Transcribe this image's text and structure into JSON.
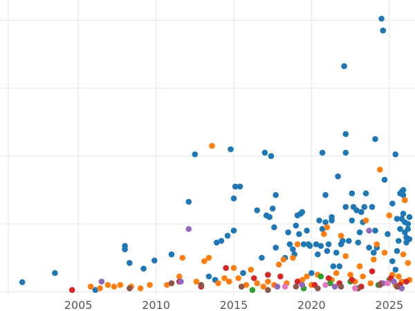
{
  "chart_data": {
    "type": "scatter",
    "title": "",
    "xlabel": "",
    "ylabel": "",
    "xlim": [
      2000.5,
      2026.3
    ],
    "ylim": [
      -1,
      86
    ],
    "x_ticks": [
      2005,
      2010,
      2015,
      2020,
      2025
    ],
    "x_tick_labels": [
      "2005",
      "2010",
      "2015",
      "2020",
      "2025"
    ],
    "y_grid_values": [
      0,
      20,
      40,
      60,
      80
    ],
    "grid": true,
    "legend": "none",
    "series": [
      {
        "color": "#1f77b4",
        "points": [
          [
            2001.4,
            2.8
          ],
          [
            2003.5,
            5.5
          ],
          [
            2006.1,
            0.5
          ],
          [
            2008.0,
            13.5
          ],
          [
            2008.0,
            12.5
          ],
          [
            2008.3,
            8.5
          ],
          [
            2009.2,
            6.8
          ],
          [
            2009.9,
            9.2
          ],
          [
            2011.0,
            11.0
          ],
          [
            2012.1,
            26.5
          ],
          [
            2012.5,
            40.5
          ],
          [
            2013.4,
            4.5
          ],
          [
            2013.8,
            3.5
          ],
          [
            2013.9,
            14.5
          ],
          [
            2014.2,
            15.0
          ],
          [
            2014.6,
            16.5
          ],
          [
            2014.8,
            42.0
          ],
          [
            2015.0,
            18.0
          ],
          [
            2015.0,
            27.5
          ],
          [
            2015.1,
            31.0
          ],
          [
            2015.4,
            31.0
          ],
          [
            2015.6,
            5.5
          ],
          [
            2016.5,
            24.0
          ],
          [
            2016.8,
            10.0
          ],
          [
            2017.0,
            41.0
          ],
          [
            2017.1,
            22.5
          ],
          [
            2017.3,
            22.0
          ],
          [
            2017.4,
            40.0
          ],
          [
            2017.5,
            24.5
          ],
          [
            2017.6,
            19.0
          ],
          [
            2017.7,
            28.5
          ],
          [
            2017.7,
            13.0
          ],
          [
            2018.3,
            10.0
          ],
          [
            2018.5,
            17.5
          ],
          [
            2018.6,
            14.0
          ],
          [
            2018.8,
            12.5
          ],
          [
            2018.9,
            11.0
          ],
          [
            2019.0,
            19.5
          ],
          [
            2019.1,
            22.5
          ],
          [
            2019.2,
            17.0
          ],
          [
            2019.3,
            23.0
          ],
          [
            2019.4,
            23.5
          ],
          [
            2019.5,
            14.0
          ],
          [
            2019.7,
            18.0
          ],
          [
            2019.8,
            14.0
          ],
          [
            2019.9,
            13.5
          ],
          [
            2020.0,
            5.5
          ],
          [
            2020.3,
            14.0
          ],
          [
            2020.4,
            11.0
          ],
          [
            2020.5,
            21.0
          ],
          [
            2020.6,
            13.5
          ],
          [
            2020.7,
            18.5
          ],
          [
            2020.7,
            41.0
          ],
          [
            2020.9,
            20.5
          ],
          [
            2020.9,
            28.5
          ],
          [
            2021.0,
            12.0
          ],
          [
            2021.1,
            14.0
          ],
          [
            2021.3,
            21.0
          ],
          [
            2021.3,
            22.0
          ],
          [
            2021.4,
            7.5
          ],
          [
            2021.6,
            11.5
          ],
          [
            2021.7,
            34.0
          ],
          [
            2021.8,
            7.5
          ],
          [
            2021.9,
            14.0
          ],
          [
            2022.0,
            15.0
          ],
          [
            2022.1,
            66.5
          ],
          [
            2022.2,
            46.5
          ],
          [
            2022.2,
            41.0
          ],
          [
            2022.2,
            25.0
          ],
          [
            2022.4,
            15.0
          ],
          [
            2022.6,
            21.0
          ],
          [
            2022.6,
            29.0
          ],
          [
            2022.7,
            25.0
          ],
          [
            2022.9,
            24.0
          ],
          [
            2023.0,
            14.5
          ],
          [
            2023.1,
            17.5
          ],
          [
            2023.2,
            23.5
          ],
          [
            2023.3,
            20.5
          ],
          [
            2023.4,
            25.0
          ],
          [
            2023.5,
            29.0
          ],
          [
            2023.7,
            13.0
          ],
          [
            2023.9,
            25.0
          ],
          [
            2024.0,
            11.5
          ],
          [
            2024.1,
            45.0
          ],
          [
            2024.1,
            18.0
          ],
          [
            2024.2,
            13.0
          ],
          [
            2024.5,
            80.5
          ],
          [
            2024.6,
            77.0
          ],
          [
            2024.7,
            33.0
          ],
          [
            2024.9,
            17.0
          ],
          [
            2025.2,
            26.0
          ],
          [
            2025.4,
            40.5
          ],
          [
            2025.5,
            21.5
          ],
          [
            2025.5,
            12.0
          ],
          [
            2025.6,
            15.0
          ],
          [
            2025.7,
            29.0
          ],
          [
            2025.8,
            29.5
          ],
          [
            2025.9,
            30.0
          ],
          [
            2025.9,
            28.5
          ],
          [
            2026.0,
            27.0
          ],
          [
            2026.0,
            17.5
          ],
          [
            2026.1,
            16.0
          ],
          [
            2026.1,
            14.5
          ],
          [
            2026.2,
            20.0
          ],
          [
            2026.2,
            18.5
          ],
          [
            2026.3,
            22.0
          ],
          [
            2026.3,
            15.5
          ],
          [
            2025.7,
            18.5
          ],
          [
            2025.8,
            21.5
          ],
          [
            2025.9,
            23.0
          ],
          [
            2026.0,
            20.5
          ],
          [
            2025.2,
            9.0
          ],
          [
            2025.4,
            6.5
          ]
        ]
      },
      {
        "color": "#ff7f0e",
        "points": [
          [
            2005.8,
            1.5
          ],
          [
            2006.4,
            1.0
          ],
          [
            2006.9,
            2.0
          ],
          [
            2007.3,
            1.5
          ],
          [
            2007.7,
            2.0
          ],
          [
            2008.4,
            1.5
          ],
          [
            2009.0,
            1.0
          ],
          [
            2009.6,
            2.0
          ],
          [
            2010.7,
            2.0
          ],
          [
            2011.5,
            4.5
          ],
          [
            2011.7,
            10.0
          ],
          [
            2012.6,
            3.0
          ],
          [
            2013.1,
            9.0
          ],
          [
            2013.4,
            10.0
          ],
          [
            2013.6,
            43.0
          ],
          [
            2014.0,
            2.5
          ],
          [
            2014.4,
            4.0
          ],
          [
            2014.7,
            3.0
          ],
          [
            2015.0,
            7.0
          ],
          [
            2015.3,
            4.0
          ],
          [
            2015.8,
            2.0
          ],
          [
            2016.1,
            6.5
          ],
          [
            2016.5,
            2.5
          ],
          [
            2016.9,
            1.5
          ],
          [
            2017.2,
            3.0
          ],
          [
            2017.6,
            2.0
          ],
          [
            2017.9,
            8.0
          ],
          [
            2018.2,
            9.5
          ],
          [
            2018.4,
            2.5
          ],
          [
            2018.8,
            10.0
          ],
          [
            2019.1,
            14.0
          ],
          [
            2019.4,
            3.5
          ],
          [
            2019.7,
            4.5
          ],
          [
            2020.0,
            2.0
          ],
          [
            2020.4,
            5.0
          ],
          [
            2020.8,
            17.0
          ],
          [
            2021.0,
            19.0
          ],
          [
            2021.3,
            3.5
          ],
          [
            2021.6,
            5.5
          ],
          [
            2021.9,
            16.5
          ],
          [
            2022.2,
            10.5
          ],
          [
            2022.5,
            5.0
          ],
          [
            2022.8,
            3.0
          ],
          [
            2023.1,
            7.5
          ],
          [
            2023.3,
            4.5
          ],
          [
            2023.5,
            21.0
          ],
          [
            2023.8,
            2.5
          ],
          [
            2024.0,
            9.5
          ],
          [
            2024.2,
            14.0
          ],
          [
            2024.4,
            36.0
          ],
          [
            2024.7,
            11.5
          ],
          [
            2025.0,
            22.5
          ],
          [
            2025.2,
            5.0
          ],
          [
            2025.4,
            2.0
          ],
          [
            2025.6,
            4.5
          ],
          [
            2025.8,
            3.0
          ],
          [
            2026.0,
            27.0
          ],
          [
            2026.2,
            8.5
          ],
          [
            2026.3,
            3.5
          ],
          [
            2025.9,
            11.0
          ]
        ]
      },
      {
        "color": "#2ca02c",
        "points": [
          [
            2016.2,
            0.5
          ],
          [
            2019.5,
            1.0
          ],
          [
            2020.6,
            4.5
          ],
          [
            2021.2,
            2.5
          ],
          [
            2022.5,
            3.0
          ],
          [
            2023.0,
            1.0
          ],
          [
            2024.3,
            2.0
          ],
          [
            2025.0,
            3.5
          ],
          [
            2025.6,
            1.5
          ]
        ]
      },
      {
        "color": "#d62728",
        "points": [
          [
            2004.6,
            0.5
          ],
          [
            2011.5,
            3.0
          ],
          [
            2012.9,
            1.5
          ],
          [
            2014.5,
            7.0
          ],
          [
            2016.3,
            4.0
          ],
          [
            2017.2,
            5.0
          ],
          [
            2018.0,
            4.5
          ],
          [
            2019.1,
            3.0
          ],
          [
            2020.2,
            2.0
          ],
          [
            2021.1,
            4.0
          ],
          [
            2021.8,
            2.5
          ],
          [
            2022.6,
            3.5
          ],
          [
            2023.2,
            1.5
          ],
          [
            2023.9,
            6.0
          ],
          [
            2024.5,
            2.5
          ],
          [
            2025.1,
            4.0
          ],
          [
            2025.7,
            2.0
          ],
          [
            2026.1,
            3.0
          ]
        ]
      },
      {
        "color": "#9467bd",
        "points": [
          [
            2006.5,
            3.0
          ],
          [
            2011.6,
            3.0
          ],
          [
            2012.1,
            18.5
          ],
          [
            2017.8,
            1.5
          ],
          [
            2019.4,
            2.0
          ],
          [
            2021.5,
            1.5
          ],
          [
            2023.7,
            18.0
          ],
          [
            2024.6,
            2.5
          ],
          [
            2025.3,
            3.0
          ],
          [
            2025.8,
            1.0
          ]
        ]
      },
      {
        "color": "#8c564b",
        "points": [
          [
            2008.3,
            1.0
          ],
          [
            2011.0,
            2.5
          ],
          [
            2012.9,
            2.0
          ],
          [
            2015.5,
            1.5
          ],
          [
            2017.2,
            0.5
          ],
          [
            2019.0,
            1.5
          ],
          [
            2020.4,
            1.0
          ],
          [
            2021.9,
            1.5
          ],
          [
            2023.0,
            1.0
          ],
          [
            2024.4,
            2.0
          ],
          [
            2025.5,
            1.5
          ]
        ]
      },
      {
        "color": "#e377c2",
        "points": [
          [
            2018.3,
            1.5
          ],
          [
            2020.9,
            2.0
          ],
          [
            2022.8,
            1.0
          ],
          [
            2024.9,
            2.5
          ]
        ]
      }
    ]
  }
}
